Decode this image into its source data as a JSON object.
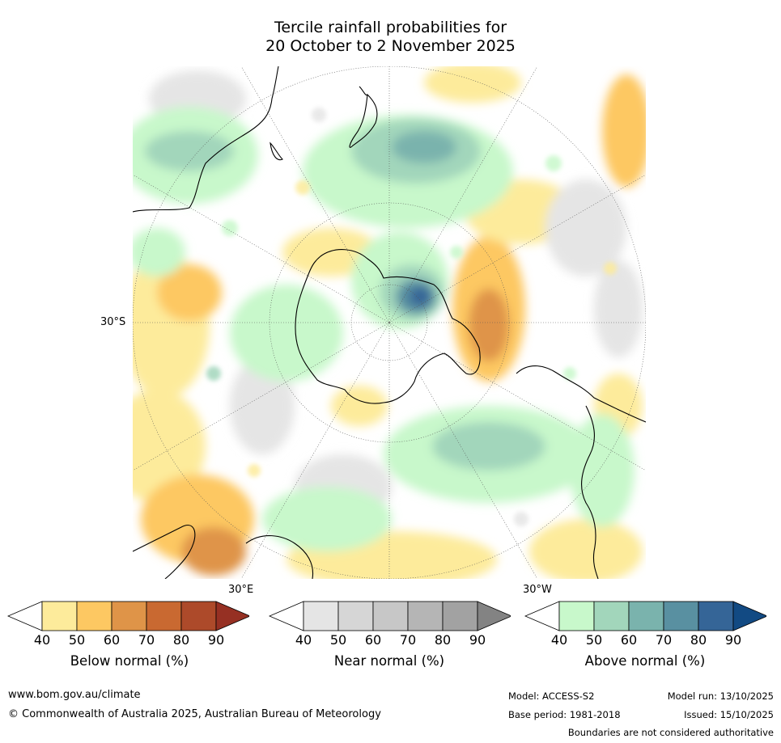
{
  "title": {
    "line1": "Tercile rainfall probabilities for",
    "line2": "20 October to 2 November 2025"
  },
  "map": {
    "projection": "south-polar-stereographic",
    "labels": {
      "lat_30s": "30°S",
      "lon_30e": "30°E",
      "lon_30w": "30°W"
    }
  },
  "colorbars": [
    {
      "id": "below",
      "label": "Below normal (%)",
      "ticks": [
        "40",
        "50",
        "60",
        "70",
        "80",
        "90"
      ],
      "colors": [
        "#fdeb9b",
        "#fdc862",
        "#df9448",
        "#c96931",
        "#ad4a2a",
        "#963023"
      ]
    },
    {
      "id": "near",
      "label": "Near normal (%)",
      "ticks": [
        "40",
        "50",
        "60",
        "70",
        "80",
        "90"
      ],
      "colors": [
        "#e5e5e5",
        "#d6d6d6",
        "#c7c7c7",
        "#b5b5b5",
        "#a2a2a2",
        "#838383"
      ]
    },
    {
      "id": "above",
      "label": "Above normal (%)",
      "ticks": [
        "40",
        "50",
        "60",
        "70",
        "80",
        "90"
      ],
      "colors": [
        "#c8f8cb",
        "#a2d6bb",
        "#7ab3ad",
        "#5990a1",
        "#356597",
        "#124a83"
      ]
    }
  ],
  "footer": {
    "website": "www.bom.gov.au/climate",
    "copyright": "© Commonwealth of Australia 2025, Australian Bureau of Meteorology",
    "model": "Model: ACCESS-S2",
    "base_period": "Base period: 1981-2018",
    "model_run": "Model run: 13/10/2025",
    "issued": "Issued: 15/10/2025",
    "disclaimer": "Boundaries are not considered authoritative"
  }
}
